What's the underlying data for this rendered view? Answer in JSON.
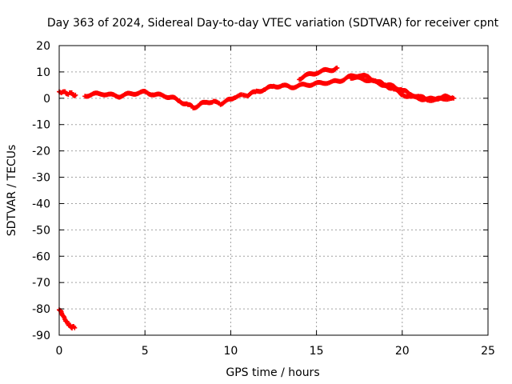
{
  "chart_data": {
    "type": "scatter",
    "title": "Day 363 of 2024, Sidereal Day-to-day VTEC variation (SDTVAR) for receiver cpnt",
    "xlabel": "GPS time / hours",
    "ylabel": "SDTVAR / TECUs",
    "xlim": [
      0,
      25
    ],
    "ylim": [
      -90,
      20
    ],
    "x_ticks": [
      0,
      5,
      10,
      15,
      20,
      25
    ],
    "y_ticks": [
      -90,
      -80,
      -70,
      -60,
      -50,
      -40,
      -30,
      -20,
      -10,
      0,
      10,
      20
    ],
    "grid": true,
    "legend": "none",
    "series": [
      {
        "name": "SDTVAR",
        "color": "#ff0000",
        "marker": "plus",
        "segments": [
          {
            "x": [
              0.0,
              0.2,
              0.4,
              0.6,
              0.8,
              0.95
            ],
            "y": [
              2.5,
              2.3,
              2.0,
              1.8,
              1.6,
              1.2
            ]
          },
          {
            "x": [
              1.5,
              2.0,
              2.5,
              3.0,
              3.5,
              4.0,
              4.5,
              5.0,
              5.5,
              6.0,
              6.5,
              7.0,
              7.5,
              7.8,
              8.2,
              8.6,
              9.0,
              9.4,
              9.8,
              10.2,
              10.6,
              11.0,
              11.5,
              12.0,
              12.5,
              13.0,
              13.5,
              14.0,
              14.5,
              15.0,
              15.5,
              16.0,
              16.5,
              17.0,
              17.5,
              18.0,
              18.5,
              19.0,
              19.5,
              20.0,
              20.5,
              21.0,
              21.5,
              22.0,
              22.5,
              22.9
            ],
            "y": [
              1.0,
              1.5,
              1.8,
              1.2,
              0.8,
              1.5,
              2.0,
              2.3,
              1.5,
              1.0,
              0.5,
              -1.0,
              -2.5,
              -3.5,
              -2.5,
              -1.2,
              -1.5,
              -2.0,
              -1.0,
              0.5,
              1.0,
              1.2,
              2.5,
              3.5,
              4.5,
              4.8,
              4.2,
              4.8,
              5.2,
              5.5,
              6.0,
              6.2,
              7.0,
              8.2,
              8.8,
              8.0,
              6.5,
              5.0,
              3.5,
              1.5,
              0.5,
              0.0,
              -0.5,
              0.0,
              0.5,
              0.0
            ]
          },
          {
            "x": [
              14.0,
              14.5,
              15.0,
              15.5,
              16.0,
              16.2
            ],
            "y": [
              7.5,
              8.8,
              9.8,
              10.5,
              11.0,
              11.5
            ]
          },
          {
            "x": [
              17.0,
              17.5,
              18.0,
              18.5,
              19.0,
              19.5,
              20.0,
              20.5,
              21.0,
              21.5,
              22.0,
              22.5,
              23.0
            ],
            "y": [
              8.0,
              7.5,
              7.0,
              6.0,
              5.0,
              4.5,
              3.0,
              1.5,
              0.5,
              -0.5,
              -0.5,
              0.0,
              0.0
            ]
          },
          {
            "x": [
              0.0,
              0.1,
              0.2,
              0.3,
              0.4,
              0.5,
              0.6,
              0.7,
              0.8,
              0.9
            ],
            "y": [
              -80.0,
              -81.0,
              -82.3,
              -83.5,
              -84.7,
              -85.6,
              -86.3,
              -86.8,
              -87.0,
              -87.2
            ]
          }
        ]
      }
    ]
  }
}
